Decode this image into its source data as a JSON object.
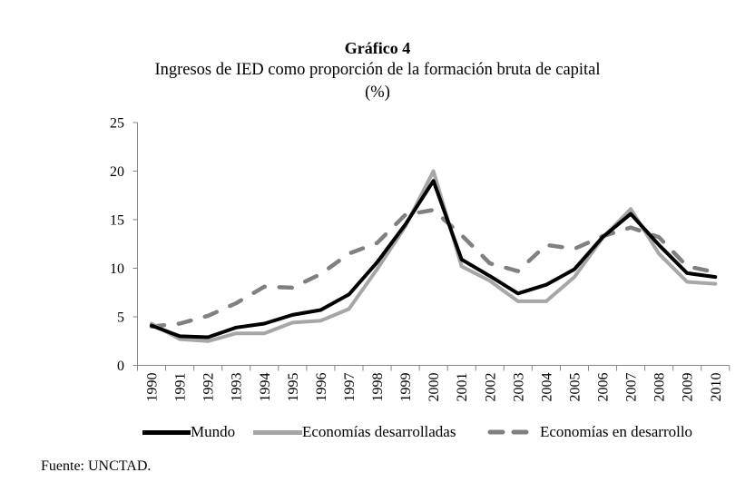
{
  "chart_data": {
    "type": "line",
    "title": "Gráfico 4",
    "subtitle": "Ingresos de IED como proporción de la formación bruta de capital",
    "unit_label": "(%)",
    "xlabel": "",
    "ylabel": "",
    "categories": [
      "1990",
      "1991",
      "1992",
      "1993",
      "1994",
      "1995",
      "1996",
      "1997",
      "1998",
      "1999",
      "2000",
      "2001",
      "2002",
      "2003",
      "2004",
      "2005",
      "2006",
      "2007",
      "2008",
      "2009",
      "2010"
    ],
    "ylim": [
      0,
      25
    ],
    "yticks": [
      0,
      5,
      10,
      15,
      20,
      25
    ],
    "ytick_labels": [
      "0",
      "5",
      "10",
      "15",
      "20",
      "25"
    ],
    "grid": false,
    "legend_position": "bottom",
    "series": [
      {
        "name": "Mundo",
        "color": "#000000",
        "style": "solid",
        "values": [
          4.1,
          3.0,
          2.9,
          3.9,
          4.3,
          5.2,
          5.7,
          7.3,
          10.6,
          14.5,
          19.0,
          10.9,
          9.2,
          7.4,
          8.3,
          9.9,
          13.2,
          15.6,
          12.4,
          9.5,
          9.1
        ]
      },
      {
        "name": "Economías desarrolladas",
        "color": "#a6a6a6",
        "style": "solid",
        "values": [
          4.3,
          2.7,
          2.5,
          3.3,
          3.3,
          4.4,
          4.6,
          5.8,
          9.9,
          14.3,
          20.0,
          10.2,
          8.7,
          6.6,
          6.6,
          9.1,
          13.1,
          16.1,
          11.5,
          8.6,
          8.4
        ]
      },
      {
        "name": "Economías en desarrollo",
        "color": "#808080",
        "style": "dashed",
        "values": [
          4.0,
          4.3,
          5.1,
          6.4,
          8.1,
          8.0,
          9.4,
          11.5,
          12.6,
          15.5,
          16.0,
          13.4,
          10.5,
          9.7,
          12.4,
          12.0,
          13.3,
          14.2,
          13.2,
          10.2,
          9.6
        ]
      }
    ]
  },
  "source": "Fuente: UNCTAD."
}
